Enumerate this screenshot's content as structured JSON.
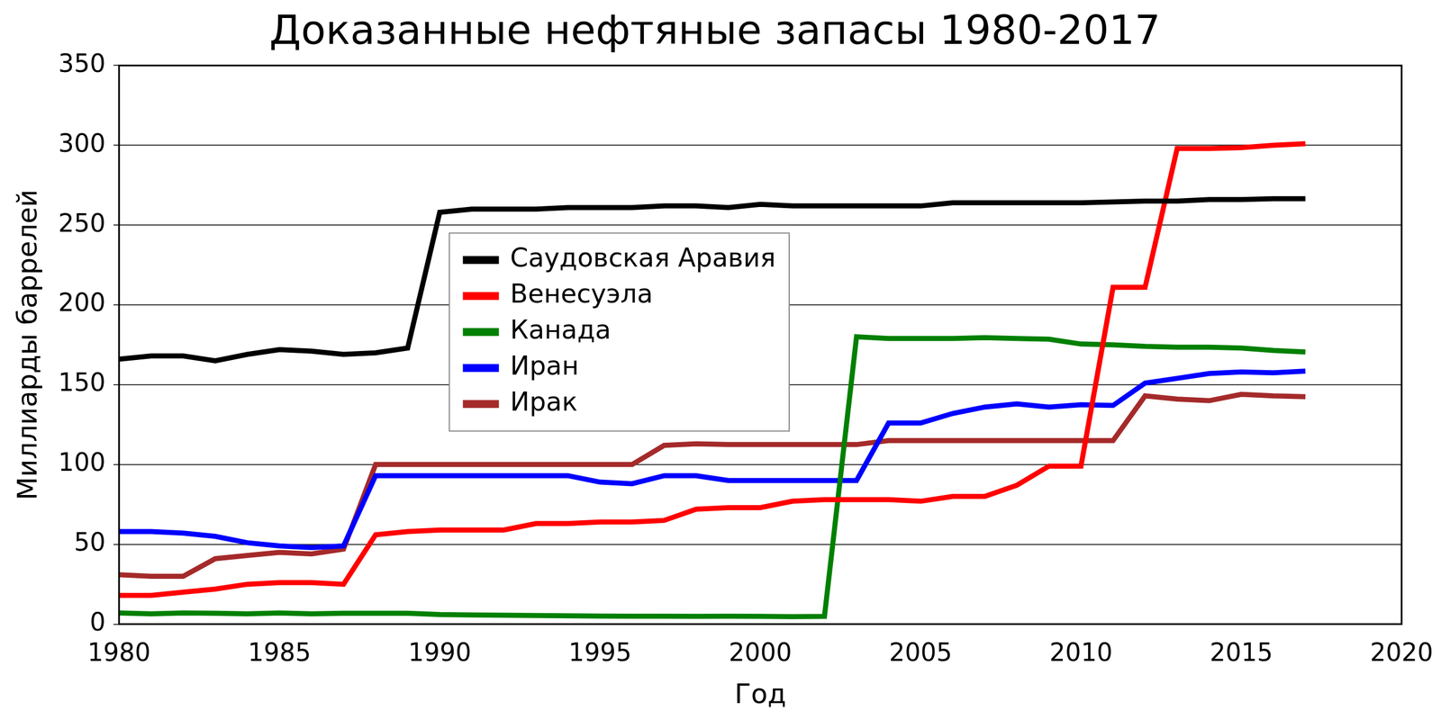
{
  "chart_data": {
    "type": "line",
    "title": "Доказанные нефтяные запасы 1980-2017",
    "x_label": "Год",
    "y_label": "Миллиарды баррелей",
    "x": [
      1980,
      1981,
      1982,
      1983,
      1984,
      1985,
      1986,
      1987,
      1988,
      1989,
      1990,
      1991,
      1992,
      1993,
      1994,
      1995,
      1996,
      1997,
      1998,
      1999,
      2000,
      2001,
      2002,
      2003,
      2004,
      2005,
      2006,
      2007,
      2008,
      2009,
      2010,
      2011,
      2012,
      2013,
      2014,
      2015,
      2016,
      2017
    ],
    "series": [
      {
        "name": "Саудовская Аравия",
        "color": "#000000",
        "values": [
          166,
          168,
          168,
          165,
          169,
          172,
          171,
          169,
          170,
          173,
          258,
          260,
          260,
          260,
          261,
          261,
          261,
          262,
          262,
          261,
          263,
          262,
          262,
          262,
          262,
          262,
          264,
          264,
          264,
          264,
          264,
          264.5,
          265,
          265,
          266,
          266,
          266.5,
          266.5
        ]
      },
      {
        "name": "Венесуэла",
        "color": "#ff0000",
        "values": [
          18,
          18,
          20,
          22,
          25,
          26,
          26,
          25,
          56,
          58,
          59,
          59,
          59,
          63,
          63,
          64,
          64,
          65,
          72,
          73,
          73,
          77,
          78,
          78,
          78,
          77,
          80,
          80,
          87,
          99,
          99,
          211,
          211,
          298,
          298,
          298.5,
          300,
          301
        ]
      },
      {
        "name": "Канада",
        "color": "#008000",
        "values": [
          7,
          6.5,
          7,
          6.8,
          6.5,
          7,
          6.5,
          6.8,
          6.8,
          6.8,
          6,
          5.8,
          5.6,
          5.4,
          5.2,
          5.1,
          5,
          5,
          4.9,
          5,
          4.9,
          4.7,
          4.9,
          180,
          179,
          179,
          179,
          179.5,
          179,
          178.5,
          175.5,
          175,
          174,
          173.5,
          173.5,
          173,
          171.5,
          170.5
        ]
      },
      {
        "name": "Иран",
        "color": "#0000ff",
        "values": [
          58,
          58,
          57,
          55,
          51,
          49,
          48,
          49,
          93,
          93,
          93,
          93,
          93,
          93,
          93,
          89,
          88,
          93,
          93,
          90,
          90,
          90,
          90,
          90,
          126,
          126,
          132,
          136,
          138,
          136,
          137.5,
          137,
          151,
          154,
          157,
          158,
          157.5,
          158.5
        ]
      },
      {
        "name": "Ирак",
        "color": "#a52a2a",
        "values": [
          31,
          30,
          30,
          41,
          43,
          45,
          44,
          47,
          100,
          100,
          100,
          100,
          100,
          100,
          100,
          100,
          100,
          112,
          113,
          112.5,
          112.5,
          112.5,
          112.5,
          112.5,
          115,
          115,
          115,
          115,
          115,
          115,
          115,
          115,
          143,
          141,
          140,
          144,
          143,
          142.5
        ]
      }
    ],
    "xlim": [
      1980,
      2020
    ],
    "xticks": [
      1980,
      1985,
      1990,
      1995,
      2000,
      2005,
      2010,
      2015,
      2020
    ],
    "ylim": [
      0,
      350
    ],
    "yticks": [
      0,
      50,
      100,
      150,
      200,
      250,
      300,
      350
    ],
    "grid": true,
    "legend": "upper center"
  }
}
